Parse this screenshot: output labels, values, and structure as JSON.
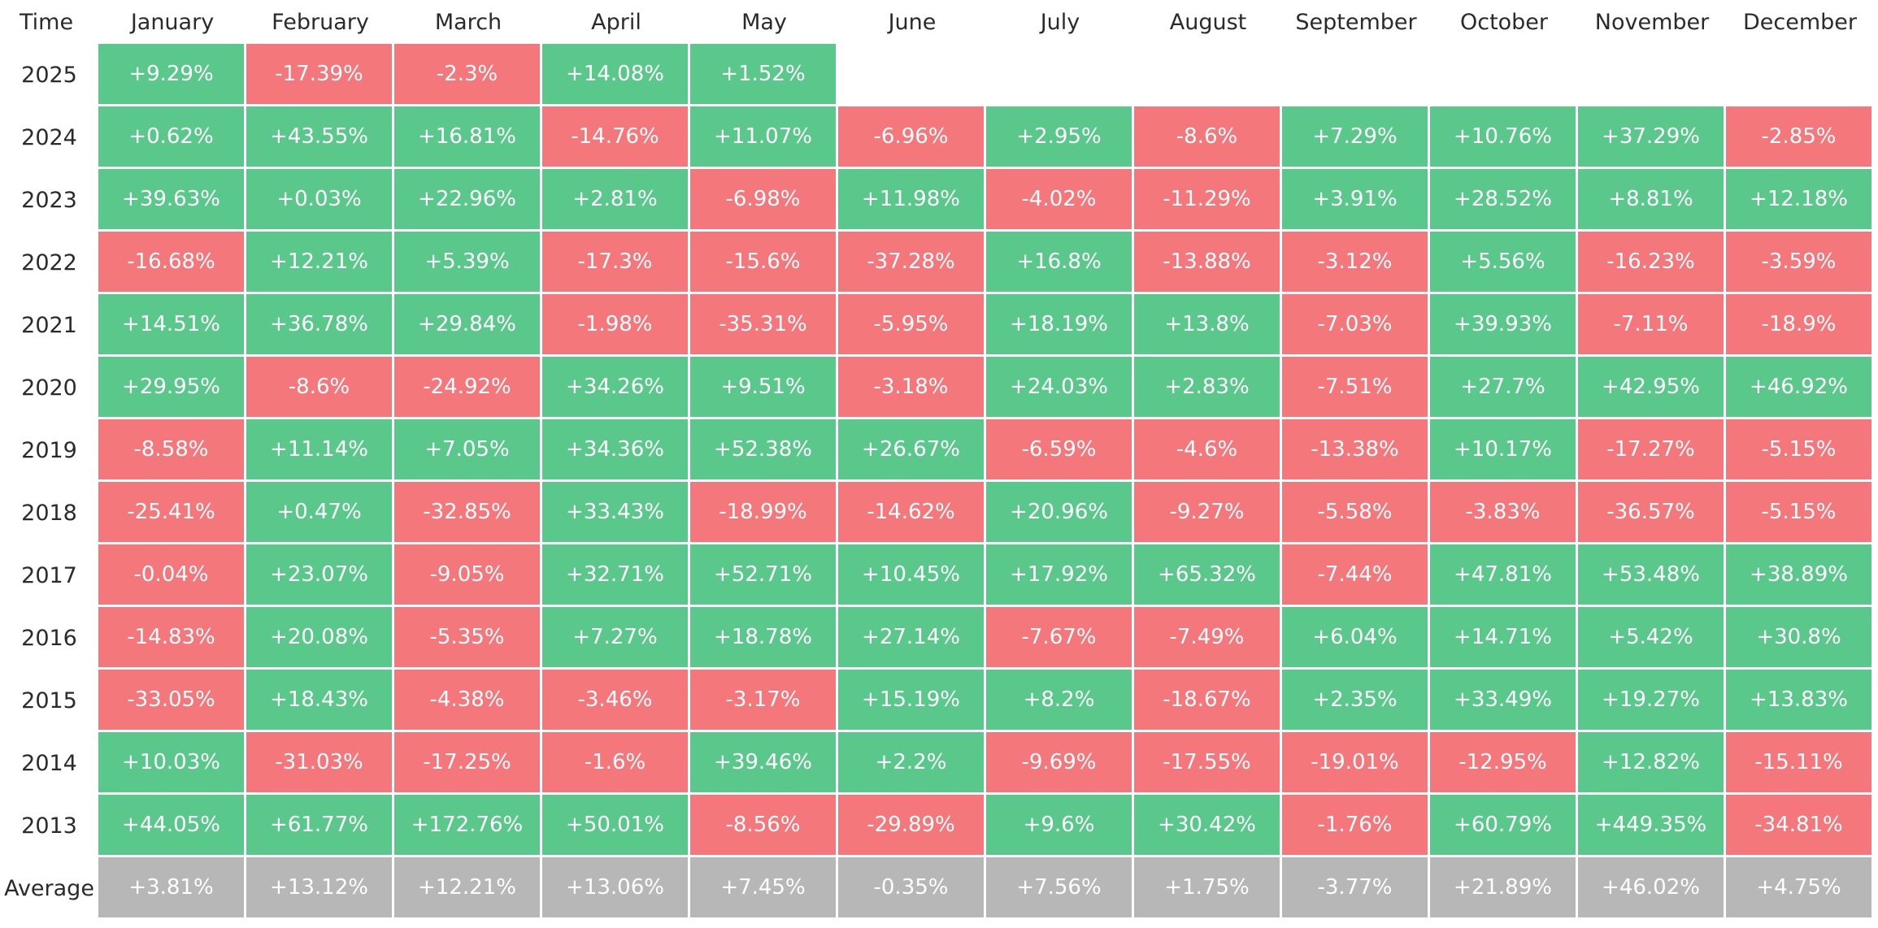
{
  "chart_data": {
    "type": "heatmap",
    "corner_label": "Time",
    "columns": [
      "January",
      "February",
      "March",
      "April",
      "May",
      "June",
      "July",
      "August",
      "September",
      "October",
      "November",
      "December"
    ],
    "rows": [
      {
        "label": "2025",
        "values": [
          "+9.29%",
          "-17.39%",
          "-2.3%",
          "+14.08%",
          "+1.52%",
          "",
          "",
          "",
          "",
          "",
          "",
          ""
        ]
      },
      {
        "label": "2024",
        "values": [
          "+0.62%",
          "+43.55%",
          "+16.81%",
          "-14.76%",
          "+11.07%",
          "-6.96%",
          "+2.95%",
          "-8.6%",
          "+7.29%",
          "+10.76%",
          "+37.29%",
          "-2.85%"
        ]
      },
      {
        "label": "2023",
        "values": [
          "+39.63%",
          "+0.03%",
          "+22.96%",
          "+2.81%",
          "-6.98%",
          "+11.98%",
          "-4.02%",
          "-11.29%",
          "+3.91%",
          "+28.52%",
          "+8.81%",
          "+12.18%"
        ]
      },
      {
        "label": "2022",
        "values": [
          "-16.68%",
          "+12.21%",
          "+5.39%",
          "-17.3%",
          "-15.6%",
          "-37.28%",
          "+16.8%",
          "-13.88%",
          "-3.12%",
          "+5.56%",
          "-16.23%",
          "-3.59%"
        ]
      },
      {
        "label": "2021",
        "values": [
          "+14.51%",
          "+36.78%",
          "+29.84%",
          "-1.98%",
          "-35.31%",
          "-5.95%",
          "+18.19%",
          "+13.8%",
          "-7.03%",
          "+39.93%",
          "-7.11%",
          "-18.9%"
        ]
      },
      {
        "label": "2020",
        "values": [
          "+29.95%",
          "-8.6%",
          "-24.92%",
          "+34.26%",
          "+9.51%",
          "-3.18%",
          "+24.03%",
          "+2.83%",
          "-7.51%",
          "+27.7%",
          "+42.95%",
          "+46.92%"
        ]
      },
      {
        "label": "2019",
        "values": [
          "-8.58%",
          "+11.14%",
          "+7.05%",
          "+34.36%",
          "+52.38%",
          "+26.67%",
          "-6.59%",
          "-4.6%",
          "-13.38%",
          "+10.17%",
          "-17.27%",
          "-5.15%"
        ]
      },
      {
        "label": "2018",
        "values": [
          "-25.41%",
          "+0.47%",
          "-32.85%",
          "+33.43%",
          "-18.99%",
          "-14.62%",
          "+20.96%",
          "-9.27%",
          "-5.58%",
          "-3.83%",
          "-36.57%",
          "-5.15%"
        ]
      },
      {
        "label": "2017",
        "values": [
          "-0.04%",
          "+23.07%",
          "-9.05%",
          "+32.71%",
          "+52.71%",
          "+10.45%",
          "+17.92%",
          "+65.32%",
          "-7.44%",
          "+47.81%",
          "+53.48%",
          "+38.89%"
        ]
      },
      {
        "label": "2016",
        "values": [
          "-14.83%",
          "+20.08%",
          "-5.35%",
          "+7.27%",
          "+18.78%",
          "+27.14%",
          "-7.67%",
          "-7.49%",
          "+6.04%",
          "+14.71%",
          "+5.42%",
          "+30.8%"
        ]
      },
      {
        "label": "2015",
        "values": [
          "-33.05%",
          "+18.43%",
          "-4.38%",
          "-3.46%",
          "-3.17%",
          "+15.19%",
          "+8.2%",
          "-18.67%",
          "+2.35%",
          "+33.49%",
          "+19.27%",
          "+13.83%"
        ]
      },
      {
        "label": "2014",
        "values": [
          "+10.03%",
          "-31.03%",
          "-17.25%",
          "-1.6%",
          "+39.46%",
          "+2.2%",
          "-9.69%",
          "-17.55%",
          "-19.01%",
          "-12.95%",
          "+12.82%",
          "-15.11%"
        ]
      },
      {
        "label": "2013",
        "values": [
          "+44.05%",
          "+61.77%",
          "+172.76%",
          "+50.01%",
          "-8.56%",
          "-29.89%",
          "+9.6%",
          "+30.42%",
          "-1.76%",
          "+60.79%",
          "+449.35%",
          "-34.81%"
        ]
      }
    ],
    "average": {
      "label": "Average",
      "values": [
        "+3.81%",
        "+13.12%",
        "+12.21%",
        "+13.06%",
        "+7.45%",
        "-0.35%",
        "+7.56%",
        "+1.75%",
        "-3.77%",
        "+21.89%",
        "+46.02%",
        "+4.75%"
      ]
    },
    "colors": {
      "positive": "#5bc88b",
      "negative": "#f4777b",
      "average": "#b7b7b7",
      "text": "#ffffff",
      "header_text": "#2b2b2b"
    }
  }
}
